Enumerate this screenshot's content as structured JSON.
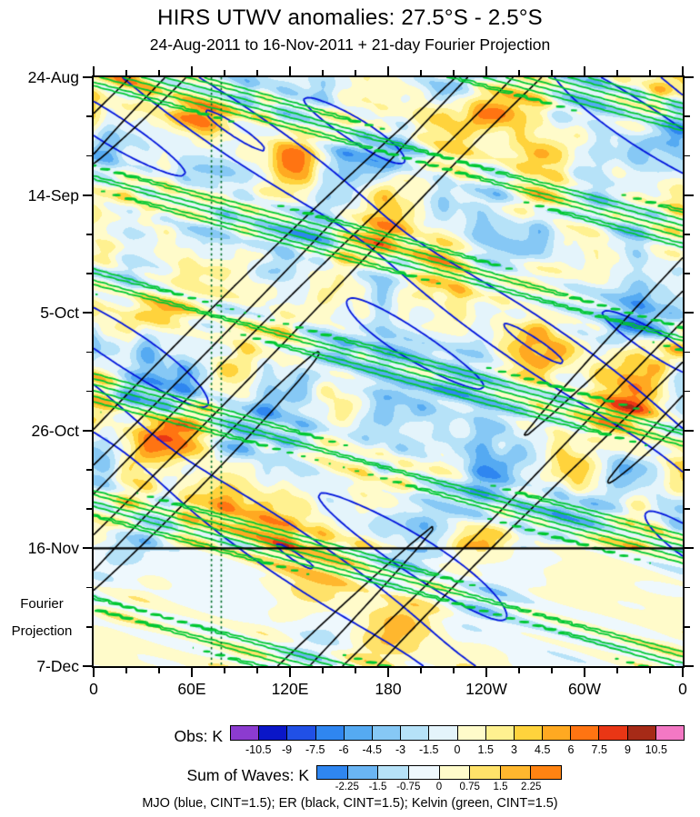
{
  "figure": {
    "title": "HIRS UTWV anomalies: 27.5°S - 2.5°S",
    "subtitle": "24-Aug-2011 to 16-Nov-2011 + 21-day Fourier Projection"
  },
  "chart_data": {
    "type": "heatmap",
    "description": "Hovmöller (time vs longitude) diagram of HIRS upper-tropospheric water vapor anomalies averaged over 27.5S-2.5S. Shaded observations run from 24-Aug-2011 to 16-Nov-2011 (Obs colorbar, K); below the black separator line a 21-day Fourier projection of the sum of waves is shaded (Sum of Waves colorbar, K). Overlaid contours show MJO (blue), ER (black) and Kelvin (green) wave anomalies at CINT=1.5 K; negative contours dashed.",
    "x_axis": {
      "ticks": [
        {
          "lon": 0,
          "label": "0"
        },
        {
          "lon": 60,
          "label": "60E"
        },
        {
          "lon": 120,
          "label": "120E"
        },
        {
          "lon": 180,
          "label": "180"
        },
        {
          "lon": 240,
          "label": "120W"
        },
        {
          "lon": 300,
          "label": "60W"
        },
        {
          "lon": 360,
          "label": "0"
        }
      ],
      "range": [
        0,
        360
      ],
      "minor_step": 20
    },
    "y_axis": {
      "ticks": [
        {
          "day": 0,
          "label": "24-Aug"
        },
        {
          "day": 21,
          "label": "14-Sep"
        },
        {
          "day": 42,
          "label": "5-Oct"
        },
        {
          "day": 63,
          "label": "26-Oct"
        },
        {
          "day": 84,
          "label": "16-Nov"
        },
        {
          "day": 105,
          "label": "7-Dec"
        }
      ],
      "minor_step_days": 7,
      "total_days": 105,
      "obs_end_day": 84,
      "fourier_label_line1": "Fourier",
      "fourier_label_line2": "Projection"
    },
    "obs_colorbar": {
      "label": "Obs: K",
      "levels": [
        -10.5,
        -9,
        -7.5,
        -6,
        -4.5,
        -3,
        -1.5,
        0,
        1.5,
        3,
        4.5,
        6,
        7.5,
        9,
        10.5
      ],
      "colors": [
        "#8c3bd0",
        "#0a16c8",
        "#2050e6",
        "#2f86f0",
        "#55aaf2",
        "#86c8f5",
        "#b6e2f8",
        "#e4f4fb",
        "#fffbca",
        "#fff190",
        "#ffd33c",
        "#ffa921",
        "#ff7412",
        "#e93615",
        "#a62a17",
        "#f378c4"
      ]
    },
    "waves_colorbar": {
      "label": "Sum of Waves: K",
      "levels": [
        -2.25,
        -1.5,
        -0.75,
        0,
        0.75,
        1.5,
        2.25
      ],
      "colors": [
        "#2f86f0",
        "#6ab5f4",
        "#b6e2f8",
        "#eef8fd",
        "#fffbca",
        "#ffe26a",
        "#ffb72e",
        "#ff8312"
      ]
    },
    "contour_sets": [
      {
        "name": "MJO",
        "color": "#0014dc",
        "line_width": 1.8,
        "cint": 1.5,
        "positive_levels": [
          1.5,
          3
        ],
        "negative_levels": [
          -1.5,
          -3
        ],
        "negative_style": "dashed"
      },
      {
        "name": "ER",
        "color": "#000000",
        "line_width": 1.6,
        "cint": 1.5,
        "positive_levels": [
          1.5,
          3
        ],
        "negative_levels": [
          -1.5,
          -3
        ],
        "negative_style": "dashed"
      },
      {
        "name": "Kelvin",
        "color": "#00c832",
        "line_width": 1.8,
        "cint": 1.5,
        "positive_levels": [
          1.5,
          3
        ],
        "negative_levels": [
          -1.5,
          -3
        ],
        "negative_style": "dashed"
      }
    ],
    "reference_lines": {
      "separator_day": 84,
      "separator_tick_label": "16-Nov",
      "vertical_lines_lon": [
        72,
        78
      ],
      "vertical_line_color": "#006e28"
    },
    "caption": "MJO (blue, CINT=1.5); ER (black, CINT=1.5); Kelvin (green, CINT=1.5)"
  }
}
